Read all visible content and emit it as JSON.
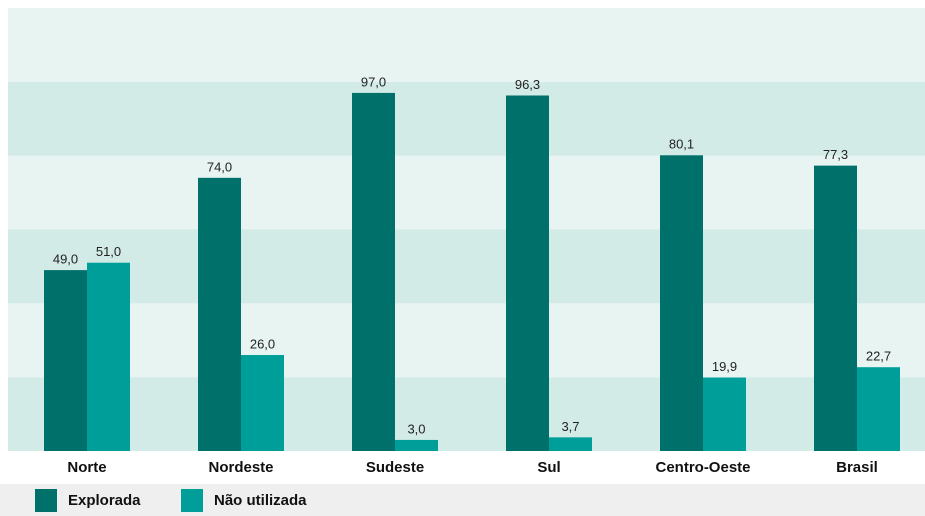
{
  "chart_data": {
    "type": "bar",
    "categories": [
      "Norte",
      "Nordeste",
      "Sudeste",
      "Sul",
      "Centro-Oeste",
      "Brasil"
    ],
    "series": [
      {
        "name": "Explorada",
        "color": "#00706b",
        "values": [
          49.0,
          74.0,
          97.0,
          96.3,
          80.1,
          77.3
        ],
        "value_labels": [
          "49,0",
          "74,0",
          "97,0",
          "96,3",
          "80,1",
          "77,3"
        ]
      },
      {
        "name": "Não utilizada",
        "color": "#009e99",
        "values": [
          51.0,
          26.0,
          3.0,
          3.7,
          19.9,
          22.7
        ],
        "value_labels": [
          "51,0",
          "26,0",
          "3,0",
          "3,7",
          "19,9",
          "22,7"
        ]
      }
    ],
    "ylim": [
      0,
      120
    ],
    "grid": "bands",
    "band_colors": [
      "#d3ebe7",
      "#e7f4f2"
    ]
  }
}
